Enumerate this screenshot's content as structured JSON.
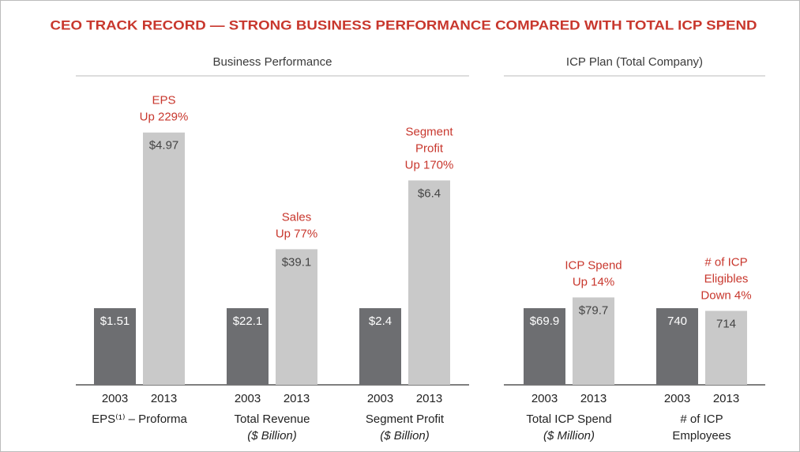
{
  "title": "CEO TRACK RECORD — STRONG BUSINESS PERFORMANCE COMPARED WITH TOTAL ICP SPEND",
  "panels": [
    {
      "heading": "Business Performance",
      "charts": [
        {
          "type": "bar",
          "annotation": [
            "EPS",
            "Up 229%"
          ],
          "categories": [
            "2003",
            "2013"
          ],
          "values": [
            1.51,
            4.97
          ],
          "value_labels": [
            "$1.51",
            "$4.97"
          ],
          "colors": [
            "#6d6e71",
            "#c9c9c9"
          ],
          "xlabel": [
            "EPS⁽¹⁾ – Proforma"
          ]
        },
        {
          "type": "bar",
          "annotation": [
            "Sales",
            "Up 77%"
          ],
          "categories": [
            "2003",
            "2013"
          ],
          "values": [
            22.1,
            39.1
          ],
          "value_labels": [
            "$22.1",
            "$39.1"
          ],
          "colors": [
            "#6d6e71",
            "#c9c9c9"
          ],
          "xlabel": [
            "Total Revenue",
            "($ Billion)"
          ]
        },
        {
          "type": "bar",
          "annotation": [
            "Segment",
            "Profit",
            "Up 170%"
          ],
          "categories": [
            "2003",
            "2013"
          ],
          "values": [
            2.4,
            6.4
          ],
          "value_labels": [
            "$2.4",
            "$6.4"
          ],
          "colors": [
            "#6d6e71",
            "#c9c9c9"
          ],
          "xlabel": [
            "Segment Profit",
            "($ Billion)"
          ]
        }
      ]
    },
    {
      "heading": "ICP Plan (Total Company)",
      "charts": [
        {
          "type": "bar",
          "annotation": [
            "ICP Spend",
            "Up 14%"
          ],
          "categories": [
            "2003",
            "2013"
          ],
          "values": [
            69.9,
            79.7
          ],
          "value_labels": [
            "$69.9",
            "$79.7"
          ],
          "colors": [
            "#6d6e71",
            "#c9c9c9"
          ],
          "xlabel": [
            "Total ICP Spend",
            "($ Million)"
          ]
        },
        {
          "type": "bar",
          "annotation": [
            "# of ICP",
            "Eligibles",
            "Down 4%"
          ],
          "categories": [
            "2003",
            "2013"
          ],
          "values": [
            740,
            714
          ],
          "colors": [
            "#6d6e71",
            "#c9c9c9"
          ],
          "xlabel": [
            "# of ICP",
            "Employees"
          ]
        }
      ]
    }
  ]
}
